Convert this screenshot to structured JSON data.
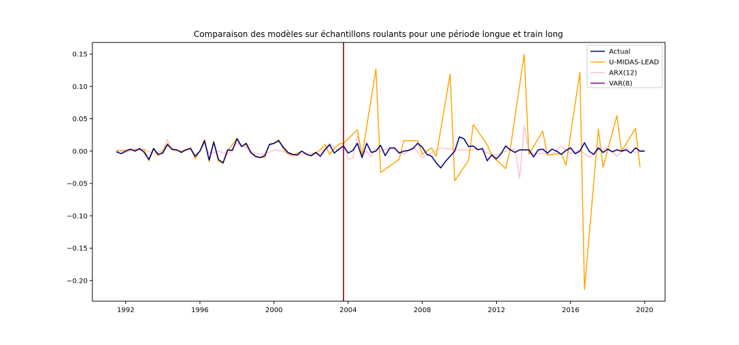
{
  "chart_data": {
    "type": "line",
    "title": "Comparaison des modèles sur échantillons roulants pour une période longue et train long",
    "xlabel": "",
    "ylabel": "",
    "xlim": [
      1990.2,
      2021.1
    ],
    "ylim": [
      -0.232,
      0.168
    ],
    "x_ticks": [
      1992,
      1996,
      2000,
      2004,
      2008,
      2012,
      2016,
      2020
    ],
    "y_ticks": [
      0.15,
      0.1,
      0.05,
      0.0,
      -0.05,
      -0.1,
      -0.15,
      -0.2
    ],
    "y_tick_labels": [
      "0.15",
      "0.10",
      "0.05",
      "0.00",
      "−0.05",
      "−0.10",
      "−0.15",
      "−0.20"
    ],
    "vline": {
      "x": 2003.75,
      "color": "#8b0000"
    },
    "legend_position": "top-right",
    "grid": false,
    "series": [
      {
        "name": "Actual",
        "color": "#00007f",
        "x": [
          1991.5,
          1991.75,
          1992,
          1992.25,
          1992.5,
          1992.75,
          1993,
          1993.25,
          1993.5,
          1993.75,
          1994,
          1994.25,
          1994.5,
          1994.75,
          1995,
          1995.25,
          1995.5,
          1995.75,
          1996,
          1996.25,
          1996.5,
          1996.75,
          1997,
          1997.25,
          1997.5,
          1997.75,
          1998,
          1998.25,
          1998.5,
          1998.75,
          1999,
          1999.25,
          1999.5,
          1999.75,
          2000,
          2000.25,
          2000.5,
          2000.75,
          2001,
          2001.25,
          2001.5,
          2001.75,
          2002,
          2002.25,
          2002.5,
          2002.75,
          2003,
          2003.25,
          2003.5,
          2003.75,
          2004,
          2004.25,
          2004.5,
          2004.75,
          2005,
          2005.25,
          2005.5,
          2005.75,
          2006,
          2006.25,
          2006.5,
          2006.75,
          2007,
          2007.25,
          2007.5,
          2007.75,
          2008,
          2008.25,
          2008.5,
          2008.75,
          2009,
          2009.25,
          2009.5,
          2009.75,
          2010,
          2010.25,
          2010.5,
          2010.75,
          2011,
          2011.25,
          2011.5,
          2011.75,
          2012,
          2012.25,
          2012.5,
          2012.75,
          2013,
          2013.25,
          2013.5,
          2013.75,
          2014,
          2014.25,
          2014.5,
          2014.75,
          2015,
          2015.25,
          2015.5,
          2015.75,
          2016,
          2016.25,
          2016.5,
          2016.75,
          2017,
          2017.25,
          2017.5,
          2017.75,
          2018,
          2018.25,
          2018.5,
          2018.75,
          2019,
          2019.25,
          2019.5,
          2019.75,
          2020
        ],
        "y": [
          -0.001,
          -0.004,
          0.0,
          0.003,
          0.0,
          0.004,
          -0.002,
          -0.013,
          0.004,
          -0.005,
          -0.003,
          0.01,
          0.003,
          0.002,
          -0.002,
          0.002,
          0.004,
          -0.008,
          0.0,
          0.016,
          -0.014,
          0.014,
          -0.013,
          -0.018,
          0.002,
          0.001,
          0.019,
          0.007,
          0.012,
          -0.002,
          -0.008,
          -0.01,
          -0.007,
          0.01,
          0.012,
          0.016,
          0.006,
          -0.002,
          -0.005,
          -0.006,
          0.0,
          -0.005,
          -0.007,
          -0.002,
          -0.008,
          0.002,
          0.01,
          -0.003,
          0.003,
          0.008,
          -0.003,
          0.001,
          0.012,
          -0.01,
          0.012,
          -0.002,
          0.0,
          0.009,
          -0.007,
          0.005,
          0.005,
          -0.003,
          0.0,
          0.001,
          0.004,
          0.012,
          0.006,
          -0.005,
          -0.008,
          -0.018,
          -0.026,
          -0.016,
          -0.008,
          0.0,
          0.022,
          0.019,
          0.007,
          0.008,
          0.002,
          0.004,
          -0.015,
          -0.006,
          -0.012,
          -0.004,
          0.008,
          0.002,
          -0.002,
          0.002,
          0.002,
          0.002,
          -0.009,
          0.002,
          0.003,
          -0.003,
          0.003,
          0.0,
          -0.005,
          0.001,
          0.005,
          -0.004,
          0.0,
          0.013,
          0.0,
          -0.005,
          0.005,
          -0.002,
          0.003,
          -0.001,
          0.002,
          0.0,
          0.002,
          -0.003,
          0.005,
          0.0,
          0.0
        ]
      },
      {
        "name": "U-MIDAS-LEAD",
        "color": "#ffa500",
        "x": [
          1991.5,
          1992.25,
          1993,
          1993.25,
          1993.5,
          1993.75,
          1994,
          1994.25,
          1994.5,
          1995,
          1995.5,
          1995.75,
          1996,
          1996.25,
          1996.5,
          1996.75,
          1997,
          1997.25,
          1997.5,
          1998,
          1998.25,
          1998.5,
          1998.75,
          1999,
          1999.5,
          1999.75,
          2000,
          2000.25,
          2000.5,
          2000.75,
          2001,
          2001.5,
          2002,
          2002.5,
          2002.75,
          2003,
          2003.25,
          2003.5,
          2003.75,
          2004.5,
          2004.75,
          2005.5,
          2005.75,
          2006.75,
          2007,
          2007.75,
          2008,
          2008.5,
          2008.75,
          2009.5,
          2009.75,
          2010.5,
          2010.75,
          2011.5,
          2011.75,
          2012.5,
          2012.75,
          2013.5,
          2013.75,
          2014.5,
          2014.75,
          2015.5,
          2015.75,
          2016.5,
          2016.75,
          2017.5,
          2017.75,
          2018.5,
          2018.75,
          2019.5,
          2019.75
        ],
        "y": [
          0.0,
          0.002,
          0.002,
          -0.015,
          0.003,
          -0.007,
          0.0,
          0.012,
          0.002,
          0.0,
          0.005,
          -0.012,
          0.0,
          0.018,
          -0.016,
          0.015,
          -0.016,
          -0.019,
          0.0,
          0.02,
          0.008,
          0.01,
          -0.003,
          -0.009,
          -0.01,
          0.011,
          0.012,
          0.018,
          0.004,
          -0.004,
          -0.006,
          0.0,
          -0.008,
          0.002,
          0.01,
          -0.005,
          0.004,
          0.011,
          0.012,
          0.033,
          -0.007,
          0.127,
          -0.033,
          -0.013,
          0.016,
          0.016,
          -0.005,
          0.005,
          -0.008,
          0.119,
          -0.046,
          -0.014,
          0.041,
          0.01,
          -0.007,
          -0.027,
          0.004,
          0.15,
          -0.005,
          0.031,
          -0.006,
          -0.004,
          -0.022,
          0.122,
          -0.214,
          0.034,
          -0.025,
          0.055,
          0.0,
          0.035,
          -0.025
        ]
      },
      {
        "name": "ARX(12)",
        "color": "#ffc0cb",
        "x": [
          1991.5,
          1992,
          1992.5,
          1993,
          1993.5,
          1994,
          1994.25,
          1994.5,
          1995,
          1995.5,
          1995.75,
          1996,
          1996.25,
          1996.5,
          1997,
          1997.5,
          1998,
          1998.5,
          1999,
          1999.5,
          2000,
          2000.5,
          2001,
          2001.5,
          2002,
          2002.5,
          2003,
          2003.5,
          2003.75,
          2004,
          2004.25,
          2004.5,
          2004.75,
          2005,
          2005.25,
          2005.5,
          2005.75,
          2006,
          2006.5,
          2007,
          2007.5,
          2008,
          2008.5,
          2009,
          2009.5,
          2010,
          2010.5,
          2011,
          2011.5,
          2012,
          2012.5,
          2013,
          2013.25,
          2013.5,
          2013.75,
          2014,
          2014.5,
          2015,
          2015.5,
          2016,
          2016.5,
          2017,
          2017.5,
          2018,
          2018.5,
          2019,
          2019.5,
          2020
        ],
        "y": [
          0.002,
          -0.002,
          0.003,
          0.003,
          -0.004,
          0.001,
          0.018,
          0.002,
          0.0,
          0.003,
          -0.01,
          0.0,
          0.012,
          -0.004,
          0.0,
          -0.005,
          0.012,
          0.005,
          -0.004,
          -0.005,
          0.002,
          0.0,
          -0.008,
          -0.005,
          -0.003,
          -0.004,
          0.012,
          0.0,
          0.01,
          -0.012,
          -0.011,
          0.023,
          -0.005,
          0.0,
          -0.009,
          0.005,
          0.0,
          0.003,
          0.003,
          -0.005,
          0.007,
          -0.01,
          -0.003,
          0.005,
          0.003,
          0.002,
          0.001,
          0.004,
          -0.003,
          -0.006,
          0.0,
          0.004,
          -0.042,
          0.038,
          0.002,
          -0.005,
          -0.003,
          -0.006,
          0.008,
          -0.004,
          0.002,
          -0.01,
          0.002,
          0.005,
          -0.008,
          0.005,
          -0.002,
          0.003
        ]
      },
      {
        "name": "VAR(8)",
        "color": "#800080",
        "x": [],
        "y": []
      }
    ]
  }
}
